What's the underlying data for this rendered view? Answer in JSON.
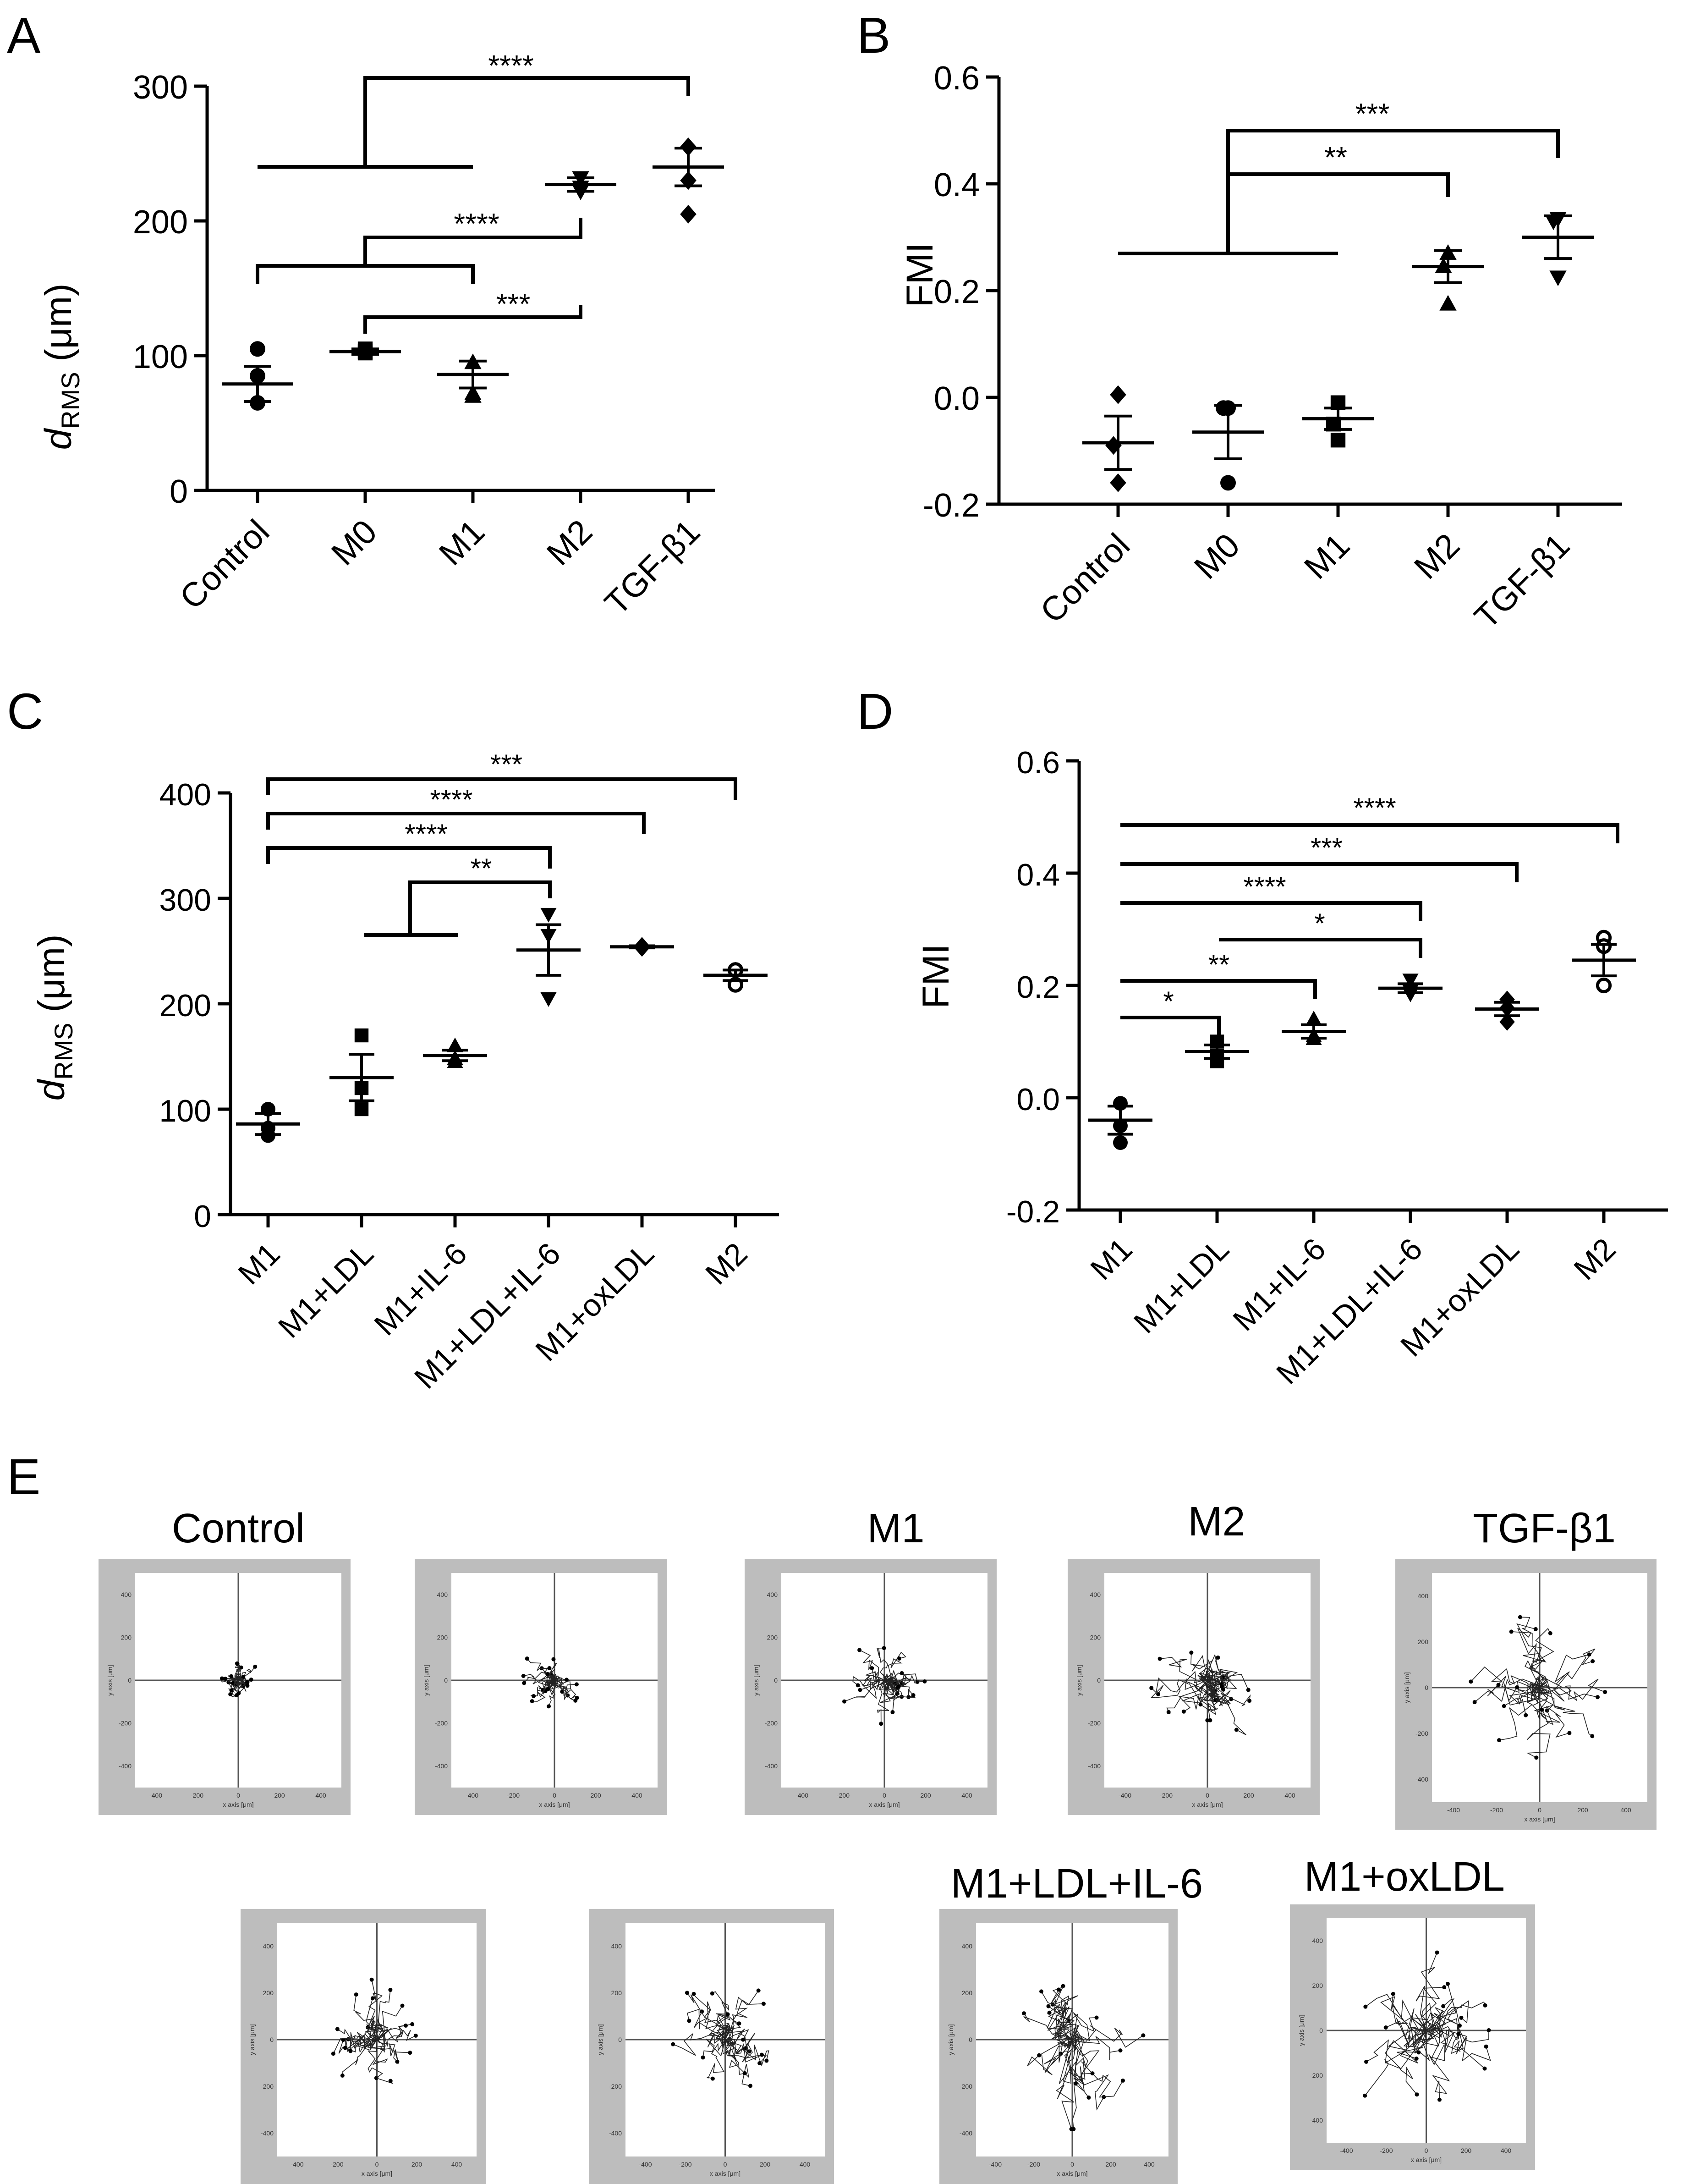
{
  "panels": {
    "A": {
      "letter": "A",
      "y_label_main": "d",
      "y_label_sub": "RMS",
      "y_label_unit": " (μm)",
      "y_ticks": [
        "0",
        "100",
        "200",
        "300"
      ],
      "categories": [
        "Control",
        "M0",
        "M1",
        "M2",
        "TGF-β1"
      ],
      "stars": [
        "****",
        "****",
        "***"
      ]
    },
    "B": {
      "letter": "B",
      "y_label": "FMI",
      "y_ticks": [
        "-0.2",
        "0.0",
        "0.2",
        "0.4",
        "0.6"
      ],
      "categories": [
        "Control",
        "M0",
        "M1",
        "M2",
        "TGF-β1"
      ],
      "stars": [
        "***",
        "**"
      ]
    },
    "C": {
      "letter": "C",
      "y_label_main": "d",
      "y_label_sub": "RMS",
      "y_label_unit": " (μm)",
      "y_ticks": [
        "0",
        "100",
        "200",
        "300",
        "400"
      ],
      "categories": [
        "M1",
        "M1+LDL",
        "M1+IL-6",
        "M1+LDL+IL-6",
        "M1+oxLDL",
        "M2"
      ],
      "stars": [
        "***",
        "****",
        "****",
        "**"
      ]
    },
    "D": {
      "letter": "D",
      "y_label": "FMI",
      "y_ticks": [
        "-0.2",
        "0.0",
        "0.2",
        "0.4",
        "0.6"
      ],
      "categories": [
        "M1",
        "M1+LDL",
        "M1+IL-6",
        "M1+LDL+IL-6",
        "M1+oxLDL",
        "M2"
      ],
      "stars": [
        "****",
        "***",
        "****",
        "*",
        "**",
        "*"
      ]
    },
    "E": {
      "letter": "E",
      "titles": [
        "Control",
        "",
        "M1",
        "M2",
        "TGF-β1",
        "",
        "",
        "M1+LDL+IL-6",
        "M1+oxLDL"
      ],
      "ticks": [
        "-400",
        "-200",
        "0",
        "200",
        "400"
      ],
      "ticks_alt": [
        "-400",
        "-200",
        "0",
        "200",
        "400"
      ],
      "xlabel": "x axis [μm]",
      "ylabel": "y axis [μm]"
    }
  },
  "chart_data": [
    {
      "type": "scatter",
      "panel": "A",
      "title": "",
      "ylabel": "dRMS (μm)",
      "ylim": [
        0,
        300
      ],
      "categories": [
        "Control",
        "M0",
        "M1",
        "M2",
        "TGF-β1"
      ],
      "points": [
        [
          85,
          105,
          65
        ],
        [
          105,
          102,
          103
        ],
        [
          70,
          95,
          72
        ],
        [
          225,
          232,
          222
        ],
        [
          230,
          255,
          205
        ]
      ],
      "means": [
        79,
        103,
        86,
        227,
        240
      ],
      "sems": [
        13,
        2,
        10,
        5,
        14
      ],
      "markers": [
        "circle",
        "square",
        "triangle-up",
        "triangle-down",
        "diamond"
      ],
      "comparisons": [
        {
          "group1": [
            "Control",
            "M0",
            "M1"
          ],
          "group2": [
            "TGF-β1"
          ],
          "label": "****"
        },
        {
          "group1": [
            "Control",
            "M1"
          ],
          "group2": [
            "M2"
          ],
          "label": "****"
        },
        {
          "group1": [
            "M0"
          ],
          "group2": [
            "M2"
          ],
          "label": "***"
        }
      ]
    },
    {
      "type": "scatter",
      "panel": "B",
      "title": "",
      "ylabel": "FMI",
      "ylim": [
        -0.2,
        0.6
      ],
      "categories": [
        "Control",
        "M0",
        "M1",
        "M2",
        "TGF-β1"
      ],
      "points": [
        [
          0.005,
          -0.09,
          -0.16
        ],
        [
          -0.02,
          -0.02,
          -0.16
        ],
        [
          -0.01,
          -0.05,
          -0.08
        ],
        [
          0.27,
          0.245,
          0.175
        ],
        [
          0.335,
          0.33,
          0.225
        ]
      ],
      "means": [
        -0.085,
        -0.065,
        -0.04,
        0.245,
        0.3
      ],
      "sems": [
        0.05,
        0.05,
        0.02,
        0.03,
        0.04
      ],
      "markers": [
        "diamond",
        "circle",
        "square",
        "triangle-up",
        "triangle-down"
      ],
      "comparisons": [
        {
          "group1": [
            "Control",
            "M0",
            "M1"
          ],
          "group2": [
            "TGF-β1"
          ],
          "label": "***"
        },
        {
          "group1": [
            "Control",
            "M0",
            "M1"
          ],
          "group2": [
            "M2"
          ],
          "label": "**"
        }
      ]
    },
    {
      "type": "scatter",
      "panel": "C",
      "title": "",
      "ylabel": "dRMS (μm)",
      "ylim": [
        0,
        400
      ],
      "categories": [
        "M1",
        "M1+LDL",
        "M1+IL-6",
        "M1+LDL+IL-6",
        "M1+oxLDL",
        "M2"
      ],
      "points": [
        [
          100,
          75,
          82
        ],
        [
          170,
          120,
          100
        ],
        [
          160,
          145,
          148
        ],
        [
          285,
          265,
          205
        ],
        [
          254,
          253,
          255
        ],
        [
          232,
          232,
          218
        ]
      ],
      "means": [
        86,
        130,
        151,
        251,
        254,
        227
      ],
      "sems": [
        10,
        22,
        5,
        24,
        1,
        5
      ],
      "markers": [
        "circle",
        "square",
        "triangle-up",
        "triangle-down",
        "diamond",
        "circle-open"
      ],
      "comparisons": [
        {
          "group1": [
            "M1"
          ],
          "group2": [
            "M2"
          ],
          "label": "***"
        },
        {
          "group1": [
            "M1"
          ],
          "group2": [
            "M1+oxLDL"
          ],
          "label": "****"
        },
        {
          "group1": [
            "M1"
          ],
          "group2": [
            "M1+LDL+IL-6"
          ],
          "label": "****"
        },
        {
          "group1": [
            "M1+LDL",
            "M1+IL-6"
          ],
          "group2": [
            "M1+LDL+IL-6"
          ],
          "label": "**"
        }
      ]
    },
    {
      "type": "scatter",
      "panel": "D",
      "title": "",
      "ylabel": "FMI",
      "ylim": [
        -0.2,
        0.6
      ],
      "categories": [
        "M1",
        "M1+LDL",
        "M1+IL-6",
        "M1+LDL+IL-6",
        "M1+oxLDL",
        "M2"
      ],
      "points": [
        [
          -0.01,
          -0.05,
          -0.08
        ],
        [
          0.1,
          0.075,
          0.065
        ],
        [
          0.14,
          0.11,
          0.105
        ],
        [
          0.21,
          0.19,
          0.185
        ],
        [
          0.175,
          0.16,
          0.135
        ],
        [
          0.285,
          0.27,
          0.2
        ]
      ],
      "means": [
        -0.04,
        0.082,
        0.118,
        0.195,
        0.158,
        0.245
      ],
      "sems": [
        0.025,
        0.012,
        0.012,
        0.008,
        0.012,
        0.028
      ],
      "markers": [
        "circle",
        "square",
        "triangle-up",
        "triangle-down",
        "diamond",
        "circle-open"
      ],
      "comparisons": [
        {
          "group1": [
            "M1"
          ],
          "group2": [
            "M2"
          ],
          "label": "****"
        },
        {
          "group1": [
            "M1"
          ],
          "group2": [
            "M1+oxLDL"
          ],
          "label": "***"
        },
        {
          "group1": [
            "M1"
          ],
          "group2": [
            "M1+LDL+IL-6"
          ],
          "label": "****"
        },
        {
          "group1": [
            "M1+LDL"
          ],
          "group2": [
            "M1+LDL+IL-6"
          ],
          "label": "*"
        },
        {
          "group1": [
            "M1"
          ],
          "group2": [
            "M1+IL-6"
          ],
          "label": "**"
        },
        {
          "group1": [
            "M1"
          ],
          "group2": [
            "M1+LDL"
          ],
          "label": "*"
        }
      ]
    },
    {
      "type": "line",
      "panel": "E",
      "title": "",
      "xlabel": "x axis [μm]",
      "ylabel": "y axis [μm]",
      "xlim": [
        -500,
        500
      ],
      "ylim": [
        -500,
        500
      ],
      "plots": [
        {
          "title": "Control",
          "radius": 90,
          "seed": 11
        },
        {
          "title": "",
          "radius": 140,
          "seed": 23
        },
        {
          "title": "M1",
          "radius": 200,
          "seed": 37
        },
        {
          "title": "M2",
          "radius": 290,
          "seed": 41
        },
        {
          "title": "TGF-β1",
          "radius": 320,
          "seed": 53
        },
        {
          "title": "",
          "radius": 240,
          "seed": 67
        },
        {
          "title": "",
          "radius": 260,
          "seed": 71
        },
        {
          "title": "M1+LDL+IL-6",
          "radius": 360,
          "seed": 83
        },
        {
          "title": "M1+oxLDL",
          "radius": 380,
          "seed": 97
        }
      ]
    }
  ]
}
